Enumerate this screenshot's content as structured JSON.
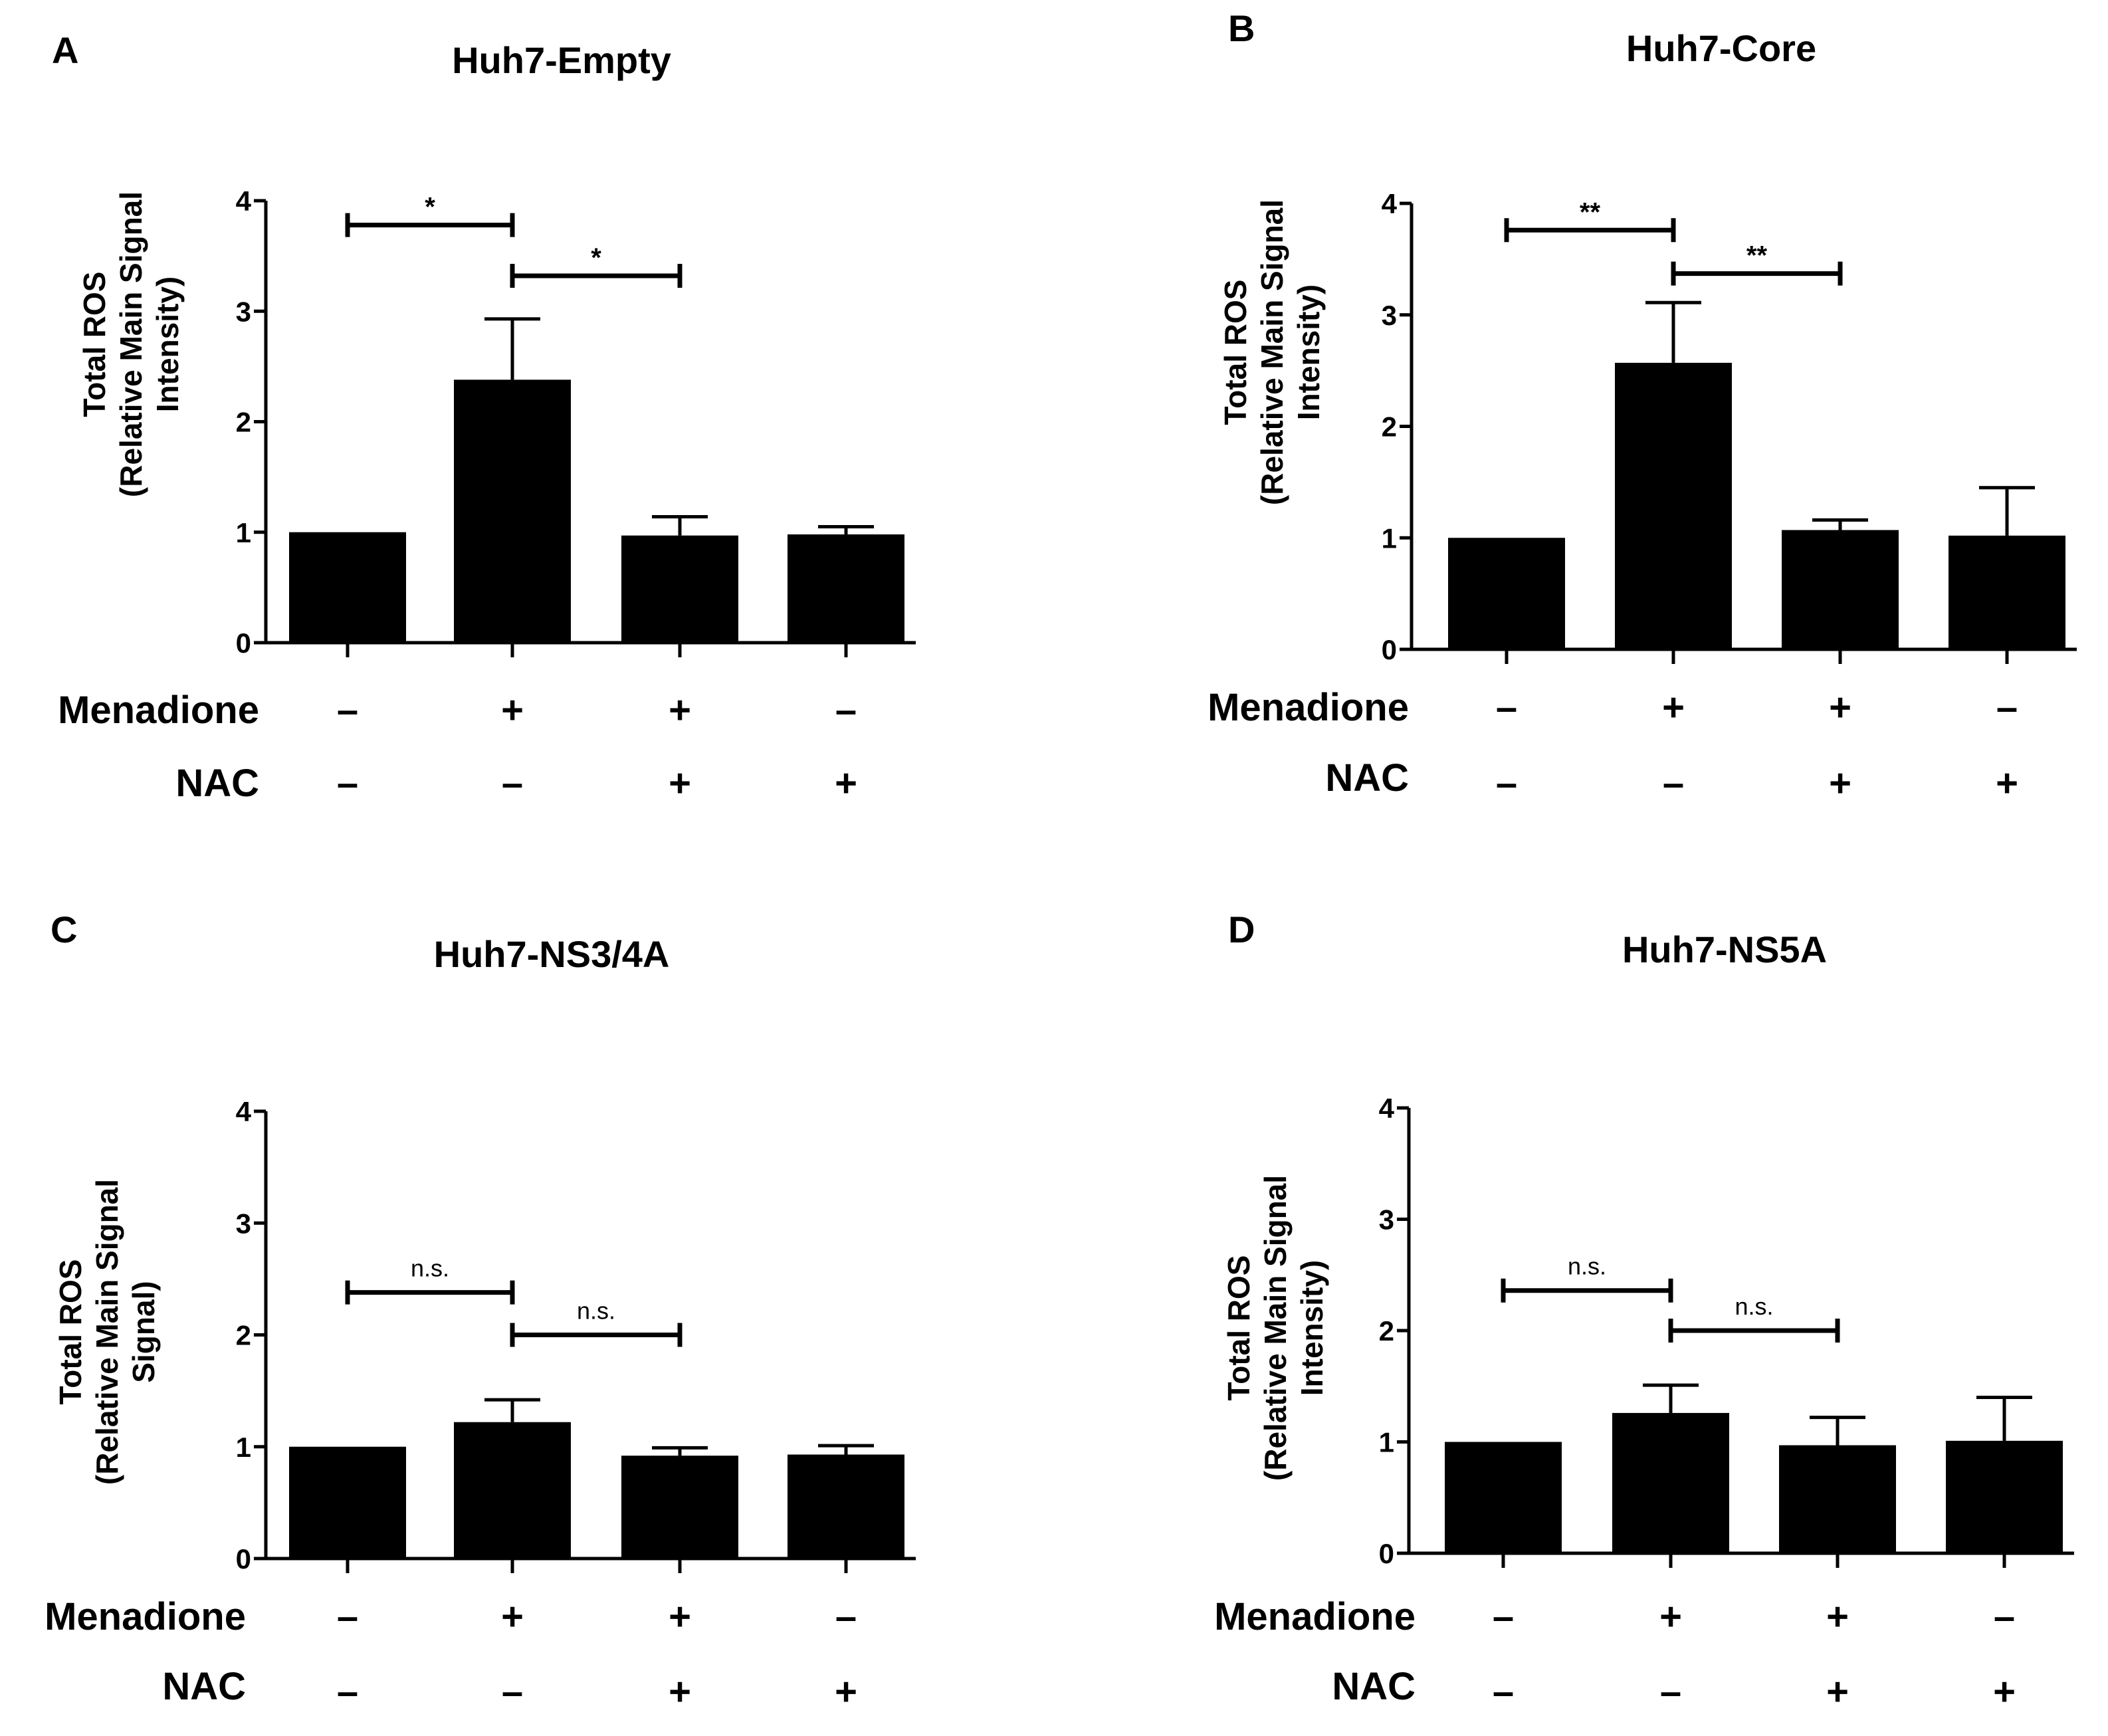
{
  "chart_data": [
    {
      "type": "bar",
      "panel_label": "A",
      "title": "Huh7-Empty",
      "ylabel_lines": [
        "Total ROS",
        "(Relative Main Signal",
        "Intensity)"
      ],
      "ylim": [
        0,
        4
      ],
      "yticks": [
        "0",
        "1",
        "2",
        "3",
        "4"
      ],
      "values": [
        1.0,
        2.38,
        0.97,
        0.98
      ],
      "errors": [
        0,
        0.55,
        0.17,
        0.07
      ],
      "treatments": {
        "row1_label": "Menadione",
        "row1": [
          "–",
          "+",
          "+",
          "–"
        ],
        "row2_label": "NAC",
        "row2": [
          "–",
          "–",
          "+",
          "+"
        ]
      },
      "comparisons": [
        {
          "from": 0,
          "to": 1,
          "y": 3.78,
          "label": "*"
        },
        {
          "from": 1,
          "to": 2,
          "y": 3.32,
          "label": "*"
        }
      ]
    },
    {
      "type": "bar",
      "panel_label": "B",
      "title": "Huh7-Core",
      "ylabel_lines": [
        "Total ROS",
        "(Relative Main Signal",
        "Intensity)"
      ],
      "ylim": [
        0,
        4
      ],
      "yticks": [
        "0",
        "1",
        "2",
        "3",
        "4"
      ],
      "values": [
        1.0,
        2.57,
        1.07,
        1.02
      ],
      "errors": [
        0,
        0.54,
        0.09,
        0.43
      ],
      "treatments": {
        "row1_label": "Menadione",
        "row1": [
          "–",
          "+",
          "+",
          "–"
        ],
        "row2_label": "NAC",
        "row2": [
          "–",
          "–",
          "+",
          "+"
        ]
      },
      "comparisons": [
        {
          "from": 0,
          "to": 1,
          "y": 3.76,
          "label": "**"
        },
        {
          "from": 1,
          "to": 2,
          "y": 3.37,
          "label": "**"
        }
      ]
    },
    {
      "type": "bar",
      "panel_label": "C",
      "title": "Huh7-NS3/4A",
      "ylabel_lines": [
        "Total ROS",
        "(Relative Main Signal",
        "Signal)"
      ],
      "ylim": [
        0,
        4
      ],
      "yticks": [
        "0",
        "1",
        "2",
        "3",
        "4"
      ],
      "values": [
        1.0,
        1.22,
        0.92,
        0.93
      ],
      "errors": [
        0,
        0.2,
        0.07,
        0.08
      ],
      "treatments": {
        "row1_label": "Menadione",
        "row1": [
          "–",
          "+",
          "+",
          "–"
        ],
        "row2_label": "NAC",
        "row2": [
          "–",
          "–",
          "+",
          "+"
        ]
      },
      "comparisons": [
        {
          "from": 0,
          "to": 1,
          "y": 2.38,
          "label": "n.s."
        },
        {
          "from": 1,
          "to": 2,
          "y": 2.0,
          "label": "n.s."
        }
      ]
    },
    {
      "type": "bar",
      "panel_label": "D",
      "title": "Huh7-NS5A",
      "ylabel_lines": [
        "Total ROS",
        "(Relative Main Signal",
        "Intensity)"
      ],
      "ylim": [
        0,
        4
      ],
      "yticks": [
        "0",
        "1",
        "2",
        "3",
        "4"
      ],
      "values": [
        1.0,
        1.26,
        0.97,
        1.01
      ],
      "errors": [
        0,
        0.25,
        0.25,
        0.39
      ],
      "treatments": {
        "row1_label": "Menadione",
        "row1": [
          "–",
          "+",
          "+",
          "–"
        ],
        "row2_label": "NAC",
        "row2": [
          "–",
          "–",
          "+",
          "+"
        ]
      },
      "comparisons": [
        {
          "from": 0,
          "to": 1,
          "y": 2.36,
          "label": "n.s."
        },
        {
          "from": 1,
          "to": 2,
          "y": 2.0,
          "label": "n.s."
        }
      ]
    }
  ]
}
